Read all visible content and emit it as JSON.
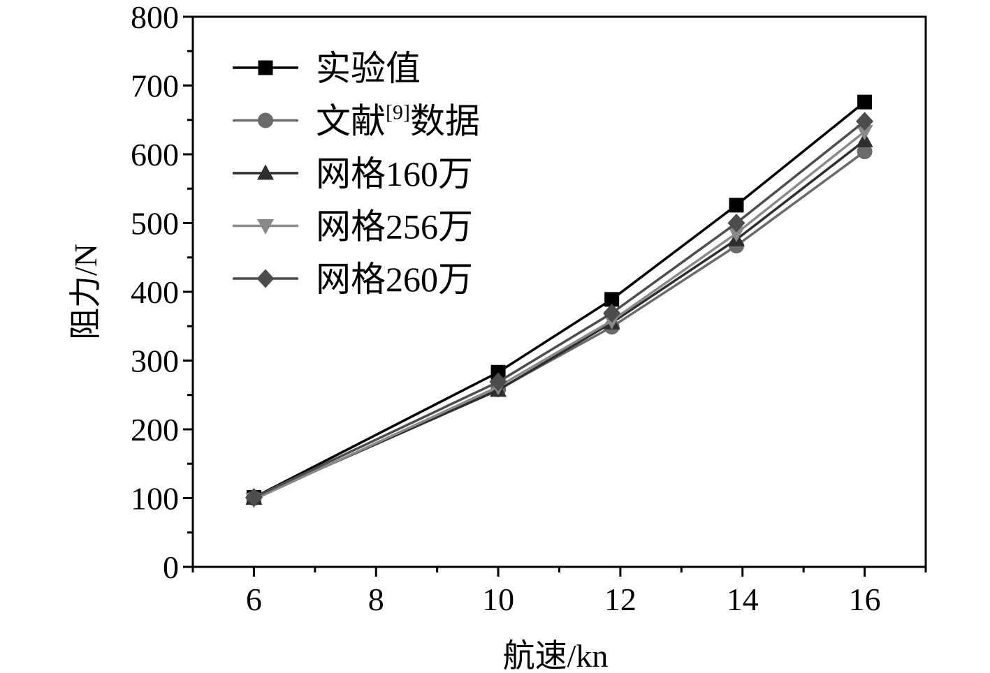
{
  "chart_data": {
    "type": "line",
    "xlabel": "航速/kn",
    "ylabel": "阻力/N",
    "xlim": [
      5,
      17
    ],
    "ylim": [
      0,
      800
    ],
    "x_ticks": [
      6,
      8,
      10,
      12,
      14,
      16
    ],
    "y_ticks": [
      0,
      100,
      200,
      300,
      400,
      500,
      600,
      700,
      800
    ],
    "grid": false,
    "legend_position": "top-left",
    "series": [
      {
        "name": "实验值",
        "name_parts": [
          "实验值",
          "",
          ""
        ],
        "marker": "square",
        "color": "#000000",
        "x": [
          6,
          10,
          11.86,
          13.9,
          16
        ],
        "y": [
          101,
          283,
          389,
          526,
          676
        ]
      },
      {
        "name": "文献[9]数据",
        "name_parts": [
          "文献",
          "[9]",
          "数据"
        ],
        "marker": "circle",
        "color": "#6b6b6b",
        "x": [
          6,
          10,
          11.86,
          13.9,
          16
        ],
        "y": [
          100,
          258,
          349,
          467,
          604
        ]
      },
      {
        "name": "网格160万",
        "name_parts": [
          "网格160万",
          "",
          ""
        ],
        "marker": "triangle-up",
        "color": "#2e2e2e",
        "x": [
          6,
          10,
          11.86,
          13.9,
          16
        ],
        "y": [
          100,
          257,
          355,
          476,
          620
        ]
      },
      {
        "name": "网格256万",
        "name_parts": [
          "网格256万",
          "",
          ""
        ],
        "marker": "triangle-down",
        "color": "#8a8a8a",
        "x": [
          6,
          10,
          11.86,
          13.9,
          16
        ],
        "y": [
          98,
          262,
          358,
          485,
          633
        ]
      },
      {
        "name": "网格260万",
        "name_parts": [
          "网格260万",
          "",
          ""
        ],
        "marker": "diamond",
        "color": "#4d4d4d",
        "x": [
          6,
          10,
          11.86,
          13.9,
          16
        ],
        "y": [
          101,
          269,
          369,
          500,
          648
        ]
      }
    ]
  }
}
